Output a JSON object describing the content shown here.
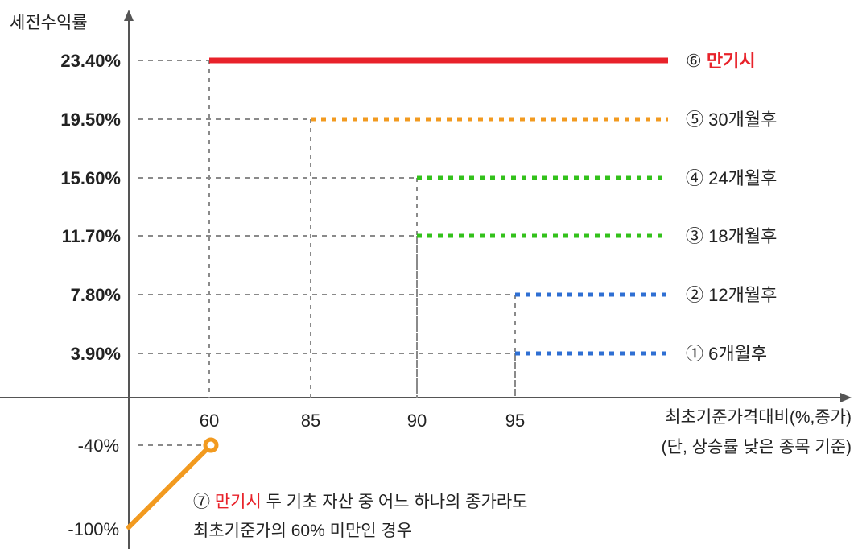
{
  "colors": {
    "red": "#e8222a",
    "orange": "#f29a1f",
    "green": "#33c11b",
    "blue": "#2f6fd3",
    "grid": "#8a8a8a",
    "axis": "#555555",
    "text": "#222222"
  },
  "chart_data": {
    "type": "line",
    "ylabel": "세전수익률",
    "xlabel": "최초기준가격대비(%,종가)",
    "xlabel_note": "(단, 상승률 낮은 종목 기준)",
    "x_ticks": [
      "60",
      "85",
      "90",
      "95"
    ],
    "y_ticks_positive": [
      "23.40%",
      "19.50%",
      "15.60%",
      "11.70%",
      "7.80%",
      "3.90%"
    ],
    "y_ticks_negative": [
      "-40%",
      "-100%"
    ],
    "series": [
      {
        "marker": "⑥",
        "name": "만기시",
        "x_from": 60,
        "y": 23.4,
        "style": "solid",
        "color_key": "red"
      },
      {
        "marker": "⑤",
        "name": "30개월후",
        "x_from": 85,
        "y": 19.5,
        "style": "dotted",
        "color_key": "orange"
      },
      {
        "marker": "④",
        "name": "24개월후",
        "x_from": 90,
        "y": 15.6,
        "style": "dotted",
        "color_key": "green"
      },
      {
        "marker": "③",
        "name": "18개월후",
        "x_from": 90,
        "y": 11.7,
        "style": "dotted",
        "color_key": "green"
      },
      {
        "marker": "②",
        "name": "12개월후",
        "x_from": 95,
        "y": 7.8,
        "style": "dotted",
        "color_key": "blue"
      },
      {
        "marker": "①",
        "name": "6개월후",
        "x_from": 95,
        "y": 3.9,
        "style": "dotted",
        "color_key": "blue"
      }
    ],
    "loss_segment": {
      "points": [
        {
          "x": 0,
          "y": -100
        },
        {
          "x": 60,
          "y": -40
        }
      ],
      "color_key": "orange"
    },
    "annotation": {
      "marker": "⑦",
      "highlight": "만기시",
      "text_line1": " 두 기초 자산 중 어느 하나의 종가라도",
      "text_line2": "최초기준가의 60% 미만인 경우"
    }
  }
}
